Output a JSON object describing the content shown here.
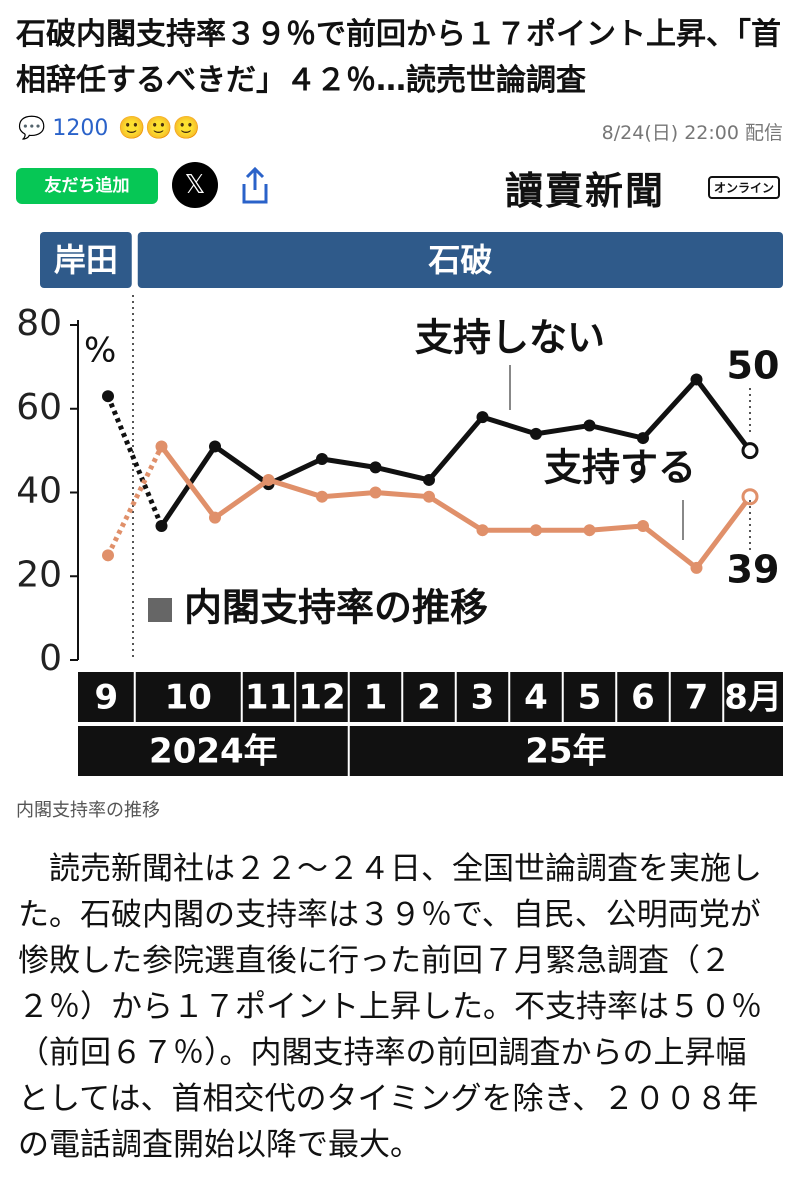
{
  "header": {
    "title": "石破内閣支持率３９％で前回から１７ポイント上昇、「首相辞任するべきだ」４２％…読売世論調査",
    "comments": "1200",
    "date": "8/24(日) 22:00 配信",
    "line_button": "友だち追加",
    "x_button": "𝕏",
    "logo": "讀賣新聞",
    "logo_sub": "オンライン"
  },
  "chart_data": {
    "type": "line",
    "title": "内閣支持率の推移",
    "unit": "%",
    "eras": [
      {
        "name": "岸田",
        "from": 0,
        "to": 0
      },
      {
        "name": "石破",
        "from": 1,
        "to": 12
      }
    ],
    "categories": [
      "9",
      "10",
      null,
      "11",
      "12",
      "1",
      "2",
      "3",
      "4",
      "5",
      "6",
      "7",
      "8月"
    ],
    "years": [
      {
        "label": "2024年",
        "from": 0,
        "to": 4
      },
      {
        "label": "25年",
        "from": 5,
        "to": 12
      }
    ],
    "ylim": [
      0,
      80
    ],
    "yticks": [
      0,
      20,
      40,
      60,
      80
    ],
    "series": [
      {
        "name": "支持しない",
        "color": "#111111",
        "values": [
          63,
          32,
          51,
          42,
          48,
          46,
          43,
          58,
          54,
          56,
          53,
          67,
          50
        ]
      },
      {
        "name": "支持する",
        "color": "#e0906a",
        "values": [
          25,
          51,
          34,
          43,
          39,
          40,
          39,
          31,
          31,
          31,
          32,
          22,
          39
        ]
      }
    ]
  },
  "caption": "内閣支持率の推移",
  "body": "読売新聞社は２２～２４日、全国世論調査を実施した。石破内閣の支持率は３９％で、自民、公明両党が惨敗した参院選直後に行った前回７月緊急調査（２２％）から１７ポイント上昇した。不支持率は５０％（前回６７％）。内閣支持率の前回調査からの上昇幅としては、首相交代のタイミングを除き、２００８年の電話調査開始以降で最大。"
}
